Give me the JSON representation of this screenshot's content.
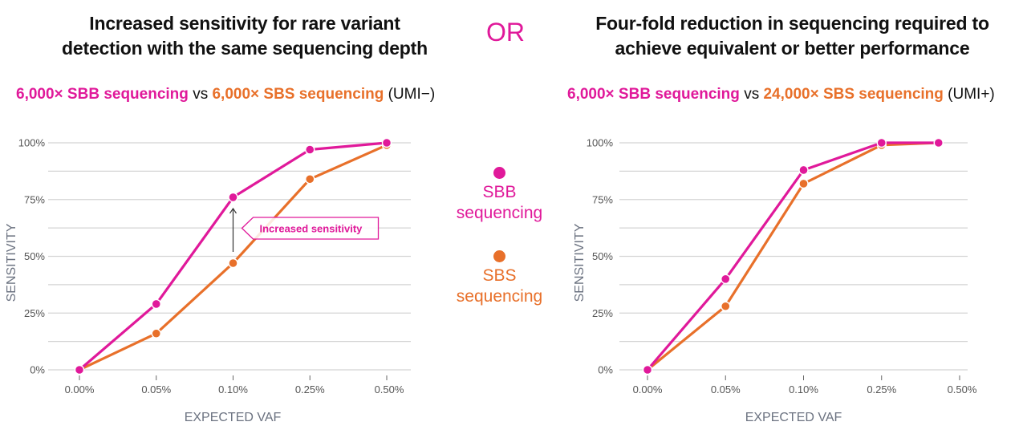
{
  "colors": {
    "sbb": "#e0199a",
    "sbs": "#e8702a",
    "grid": "#d4d4d4",
    "axis_label": "#6b7280",
    "tick_label": "#555555",
    "annotation_arrow": "#333333"
  },
  "or_label": "OR",
  "legend": {
    "items": [
      {
        "label_line1": "SBB",
        "label_line2": "sequencing",
        "color": "#e0199a"
      },
      {
        "label_line1": "SBS",
        "label_line2": "sequencing",
        "color": "#e8702a"
      }
    ]
  },
  "left": {
    "title_line1": "Increased sensitivity for rare variant",
    "title_line2": "detection with the same sequencing depth",
    "subtitle": {
      "sbb": "6,000× SBB sequencing",
      "vs": "vs",
      "sbs": "6,000× SBS sequencing",
      "suffix": "(UMI−)"
    }
  },
  "right": {
    "title_line1": "Four-fold reduction in sequencing required to",
    "title_line2": "achieve equivalent or better performance",
    "subtitle": {
      "sbb": "6,000× SBB sequencing",
      "vs": "vs",
      "sbs": "24,000× SBS sequencing",
      "suffix": "(UMI+)"
    }
  },
  "chart_data": [
    {
      "type": "line",
      "title": "Increased sensitivity for rare variant detection with the same sequencing depth",
      "subtitle": "6,000× SBB sequencing vs 6,000× SBS sequencing (UMI−)",
      "xlabel": "EXPECTED VAF",
      "ylabel": "SENSITIVITY",
      "categories": [
        "0.00%",
        "0.05%",
        "0.10%",
        "0.25%",
        "0.50%"
      ],
      "yticks": [
        "0%",
        "25%",
        "50%",
        "75%",
        "100%"
      ],
      "ylim": [
        0,
        100
      ],
      "grid": true,
      "gridline_step": 12.5,
      "series": [
        {
          "name": "SBB sequencing",
          "color": "#e0199a",
          "x_index": [
            0,
            1,
            2,
            3,
            4
          ],
          "values": [
            0,
            29,
            76,
            97,
            100
          ]
        },
        {
          "name": "SBS sequencing",
          "color": "#e8702a",
          "x_index": [
            0,
            1,
            2,
            3,
            4
          ],
          "values": [
            0,
            16,
            47,
            84,
            99
          ]
        }
      ],
      "annotations": [
        {
          "text": "Increased sensitivity",
          "x_category": "0.10%",
          "arrow_from": 47,
          "arrow_to": 76
        }
      ]
    },
    {
      "type": "line",
      "title": "Four-fold reduction in sequencing required to achieve equivalent or better performance",
      "subtitle": "6,000× SBB sequencing vs 24,000× SBS sequencing (UMI+)",
      "xlabel": "EXPECTED VAF",
      "ylabel": "SENSITIVITY",
      "categories": [
        "0.00%",
        "0.05%",
        "0.10%",
        "0.25%",
        "0.50%"
      ],
      "yticks": [
        "0%",
        "25%",
        "50%",
        "75%",
        "100%"
      ],
      "ylim": [
        0,
        100
      ],
      "grid": true,
      "gridline_step": 12.5,
      "series": [
        {
          "name": "SBB sequencing",
          "color": "#e0199a",
          "x_index": [
            0,
            1,
            2,
            3,
            3.73
          ],
          "values": [
            0,
            40,
            88,
            100,
            100
          ]
        },
        {
          "name": "SBS sequencing",
          "color": "#e8702a",
          "x_index": [
            0,
            1,
            2,
            3,
            3.73
          ],
          "values": [
            0,
            28,
            82,
            99,
            100
          ]
        }
      ],
      "annotations": []
    }
  ]
}
